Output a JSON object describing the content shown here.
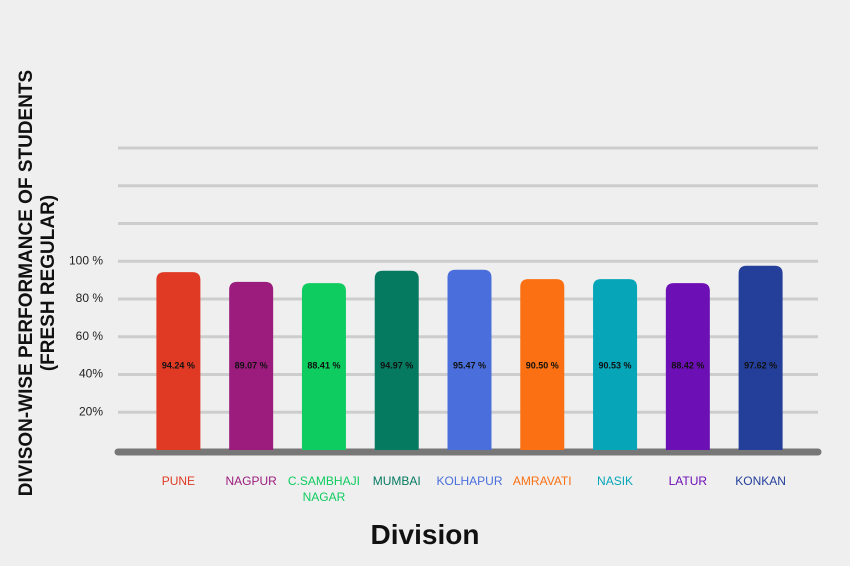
{
  "chart_data": {
    "type": "bar",
    "y_label": "DIVISON-WISE PERFORMANCE OF STUDENTS (FRESH REGULAR)",
    "x_label": "Division",
    "categories": [
      "PUNE",
      "NAGPUR",
      "C.SAMBHAJI NAGAR",
      "MUMBAI",
      "KOLHAPUR",
      "AMRAVATI",
      "NASIK",
      "LATUR",
      "KONKAN"
    ],
    "values": [
      94.24,
      89.07,
      88.41,
      94.97,
      95.47,
      90.5,
      90.53,
      88.42,
      97.62
    ],
    "value_labels": [
      "94.24 %",
      "89.07 %",
      "88.41 %",
      "94.97 %",
      "95.47 %",
      "90.50 %",
      "90.53 %",
      "88.42 %",
      "97.62 %"
    ],
    "colors": [
      "#e03a25",
      "#9b1c7c",
      "#0ecc5f",
      "#067a60",
      "#4a6fdc",
      "#fa7012",
      "#06a5b8",
      "#6c0fb5",
      "#233f9a"
    ],
    "ylim": [
      0,
      160
    ],
    "yticks": [
      {
        "value": 20,
        "label": "20%"
      },
      {
        "value": 40,
        "label": "40%"
      },
      {
        "value": 60,
        "label": "60 %"
      },
      {
        "value": 80,
        "label": "80 %"
      },
      {
        "value": 100,
        "label": "100 %"
      },
      {
        "value": 120,
        "label": null
      },
      {
        "value": 140,
        "label": null
      },
      {
        "value": 160,
        "label": null
      }
    ],
    "grid": true
  }
}
